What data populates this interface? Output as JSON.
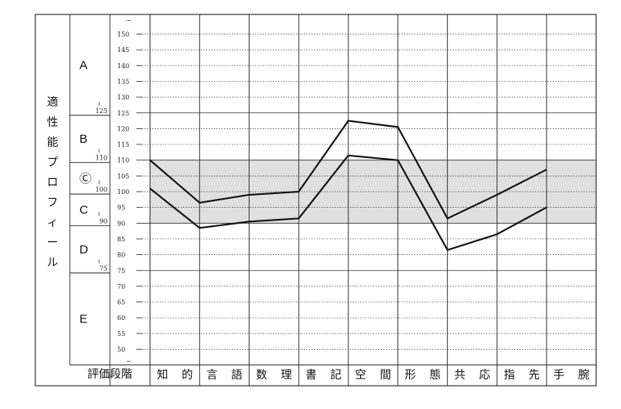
{
  "chart_data": {
    "type": "line",
    "title": "",
    "ylabel": "適性能プロフィール",
    "xlabel": "評価段階",
    "ylim": [
      50,
      150
    ],
    "yticks": [
      50,
      55,
      60,
      65,
      70,
      75,
      80,
      85,
      90,
      95,
      100,
      105,
      110,
      115,
      120,
      125,
      130,
      135,
      140,
      145,
      150
    ],
    "axis_break_marks": "~",
    "band": {
      "from": 90,
      "to": 110,
      "color": "#e0e0e0"
    },
    "grid": true,
    "categories": [
      "知的",
      "言語",
      "数理",
      "書記",
      "空間",
      "形態",
      "共応",
      "指先",
      "手腕"
    ],
    "category_chars": [
      "知",
      "的",
      "言",
      "語",
      "数",
      "理",
      "書",
      "記",
      "空",
      "間",
      "形",
      "態",
      "共",
      "応",
      "指",
      "先",
      "手",
      "腕"
    ],
    "series": [
      {
        "values": [
          110,
          96.5,
          99,
          100,
          122.5,
          120.5,
          91.5,
          99,
          107
        ]
      },
      {
        "values": [
          101,
          88.5,
          90.5,
          91.5,
          111.5,
          110,
          81.5,
          86.5,
          95
        ]
      }
    ],
    "grades": [
      {
        "letter": "A",
        "min": "125"
      },
      {
        "letter": "B",
        "min": "110"
      },
      {
        "letter": "Ⓒ",
        "min": "100"
      },
      {
        "letter": "C",
        "min": "90"
      },
      {
        "letter": "D",
        "min": "75"
      },
      {
        "letter": "E",
        "min": ""
      }
    ],
    "range_mark": "≀"
  }
}
